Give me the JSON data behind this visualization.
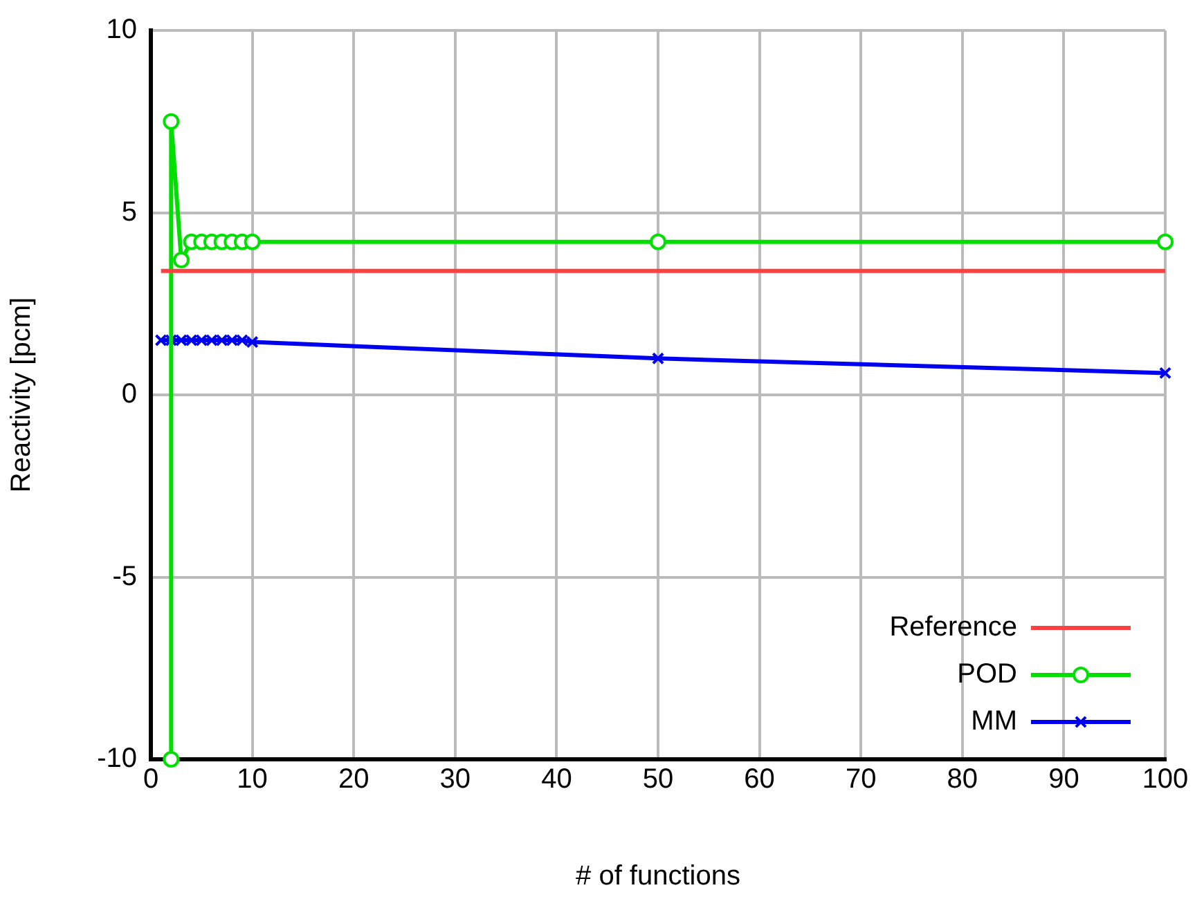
{
  "chart_data": {
    "type": "line",
    "xlabel": "# of functions",
    "ylabel": "Reactivity [pcm]",
    "xlim": [
      0,
      100
    ],
    "xticks": [
      0,
      10,
      20,
      30,
      40,
      50,
      60,
      70,
      80,
      90,
      100
    ],
    "ylim": [
      -10,
      10
    ],
    "yticks": [
      -10,
      -5,
      0,
      5,
      10
    ],
    "grid": true,
    "legend": "bottom right",
    "line_style": "solid",
    "series": [
      {
        "name": "Reference",
        "color": "#ff4040",
        "marker": "none",
        "x": [
          1,
          100
        ],
        "values": [
          3.4,
          3.4
        ]
      },
      {
        "name": "POD",
        "color": "#00e000",
        "marker": "circle",
        "x": [
          2,
          2,
          3,
          4,
          5,
          6,
          7,
          8,
          9,
          10,
          50,
          100
        ],
        "values": [
          -10,
          7.5,
          3.7,
          4.2,
          4.2,
          4.2,
          4.2,
          4.2,
          4.2,
          4.2,
          4.2,
          4.2
        ]
      },
      {
        "name": "MM",
        "color": "#0000f0",
        "marker": "cross",
        "x": [
          1,
          2,
          3,
          4,
          5,
          6,
          7,
          8,
          9,
          10,
          50,
          100
        ],
        "values": [
          1.5,
          1.5,
          1.5,
          1.5,
          1.5,
          1.5,
          1.5,
          1.5,
          1.5,
          1.45,
          1.0,
          0.6
        ]
      }
    ]
  }
}
